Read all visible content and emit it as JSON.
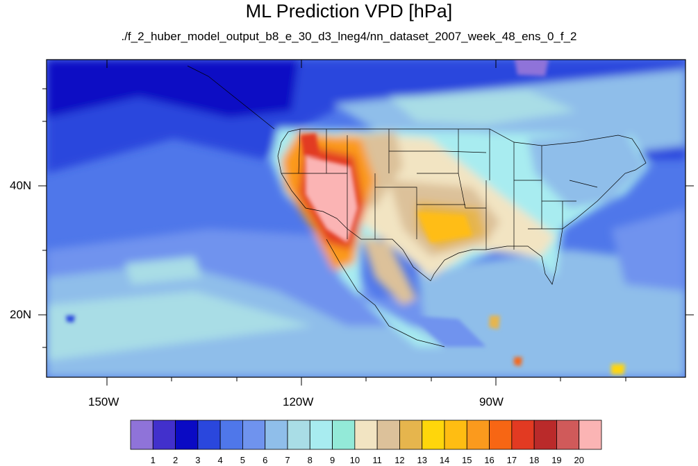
{
  "title": "ML Prediction VPD [hPa]",
  "subtitle": "./f_2_huber_model_output_b8_e_30_d3_lneg4/nn_dataset_2007_week_48_ens_0_f_2",
  "map": {
    "lon_range": [
      -160,
      -62
    ],
    "lat_range": [
      10,
      59
    ],
    "lat_ticks": [
      "40N",
      "20N"
    ],
    "lon_ticks": [
      "150W",
      "120W",
      "90W"
    ]
  },
  "colorbar": {
    "colors": [
      "#8f73d9",
      "#4230cc",
      "#0a0ac4",
      "#2a47dd",
      "#4f77ea",
      "#6f93ee",
      "#8fbeea",
      "#a9dde6",
      "#a8ecf0",
      "#93ead8",
      "#f2e4c2",
      "#dcc19a",
      "#e6b54d",
      "#ffd60b",
      "#ffbd12",
      "#fb9a1d",
      "#f76614",
      "#e23a22",
      "#ba2a2a",
      "#d05a5a",
      "#fbb4b4"
    ],
    "labels": [
      "1",
      "2",
      "3",
      "4",
      "5",
      "6",
      "7",
      "8",
      "9",
      "10",
      "11",
      "12",
      "13",
      "14",
      "15",
      "16",
      "17",
      "18",
      "19",
      "20"
    ]
  }
}
